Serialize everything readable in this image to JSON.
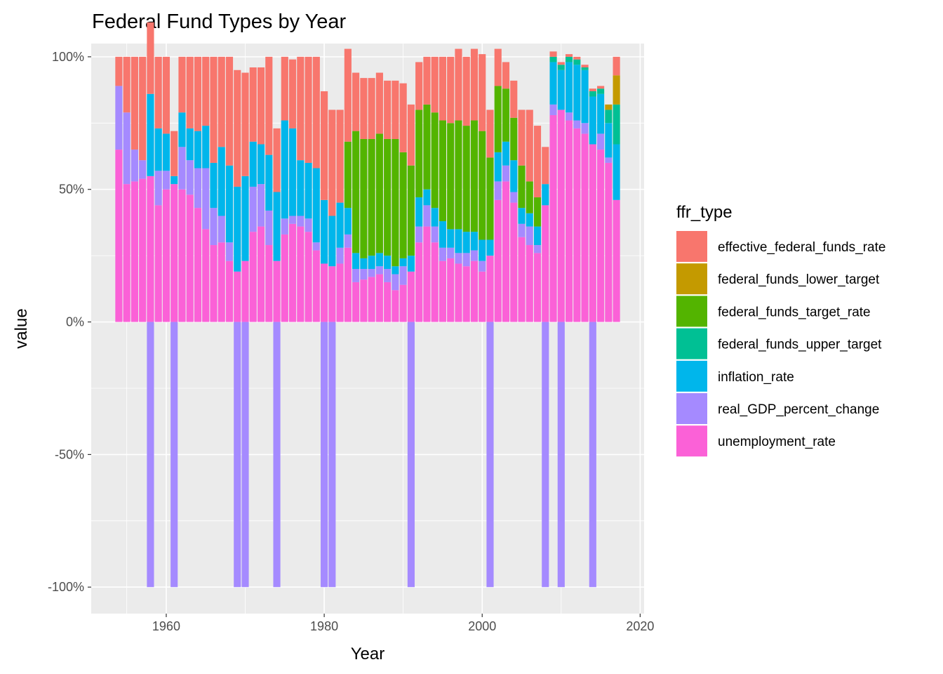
{
  "chart_data": {
    "type": "bar",
    "stacked": "fill",
    "title": "Federal Fund Types by Year",
    "xlabel": "Year",
    "ylabel": "value",
    "xlim": [
      1950.5,
      2020.5
    ],
    "ylim": [
      -1.1,
      1.05
    ],
    "x_ticks": [
      1960,
      1980,
      2000,
      2020
    ],
    "x_tick_labels": [
      "1960",
      "1980",
      "2000",
      "2020"
    ],
    "y_ticks": [
      -1,
      -0.5,
      0,
      0.5,
      1
    ],
    "y_tick_labels": [
      "-100%",
      "-50%",
      "0%",
      "50%",
      "100%"
    ],
    "grid": true,
    "legend_title": "ffr_type",
    "legend_position": "right",
    "series_order": [
      "effective_federal_funds_rate",
      "federal_funds_lower_target",
      "federal_funds_target_rate",
      "federal_funds_upper_target",
      "inflation_rate",
      "real_GDP_percent_change",
      "unemployment_rate"
    ],
    "colors": {
      "effective_federal_funds_rate": "#F8766D",
      "federal_funds_lower_target": "#C49A00",
      "federal_funds_target_rate": "#53B400",
      "federal_funds_upper_target": "#00C094",
      "inflation_rate": "#00B6EB",
      "real_GDP_percent_change": "#A58AFF",
      "unemployment_rate": "#FB61D7"
    },
    "years": [
      1954,
      1955,
      1956,
      1957,
      1958,
      1959,
      1960,
      1961,
      1962,
      1963,
      1964,
      1965,
      1966,
      1967,
      1968,
      1969,
      1970,
      1971,
      1972,
      1973,
      1974,
      1975,
      1976,
      1977,
      1978,
      1979,
      1980,
      1981,
      1982,
      1983,
      1984,
      1985,
      1986,
      1987,
      1988,
      1989,
      1990,
      1991,
      1992,
      1993,
      1994,
      1995,
      1996,
      1997,
      1998,
      1999,
      2000,
      2001,
      2002,
      2003,
      2004,
      2005,
      2006,
      2007,
      2008,
      2009,
      2010,
      2011,
      2012,
      2013,
      2014,
      2015,
      2016,
      2017
    ],
    "series": [
      {
        "name": "unemployment_rate",
        "values": [
          0.65,
          0.52,
          0.53,
          0.54,
          0.55,
          0.44,
          0.5,
          0.52,
          0.5,
          0.48,
          0.43,
          0.35,
          0.29,
          0.3,
          0.23,
          0.19,
          0.23,
          0.34,
          0.36,
          0.29,
          0.23,
          0.33,
          0.37,
          0.36,
          0.34,
          0.27,
          0.22,
          0.21,
          0.22,
          0.28,
          0.15,
          0.16,
          0.17,
          0.18,
          0.15,
          0.12,
          0.14,
          0.19,
          0.3,
          0.36,
          0.3,
          0.23,
          0.24,
          0.22,
          0.21,
          0.23,
          0.19,
          0.25,
          0.46,
          0.53,
          0.45,
          0.32,
          0.29,
          0.26,
          0.44,
          0.78,
          0.8,
          0.76,
          0.73,
          0.71,
          0.67,
          0.65,
          0.6,
          0.46
        ]
      },
      {
        "name": "real_GDP_percent_change",
        "values": [
          0.24,
          0.27,
          0.12,
          0.07,
          -1,
          0.13,
          0.07,
          -1,
          0.16,
          0.13,
          0.15,
          0.23,
          0.14,
          0.1,
          0.07,
          -1,
          -1,
          0.17,
          0.16,
          0.13,
          -1,
          0.06,
          0.03,
          0.04,
          0.05,
          0.03,
          -1,
          -1,
          0.06,
          0.05,
          0.05,
          0.04,
          0.03,
          0.03,
          0.05,
          0.06,
          0.07,
          -1,
          0.06,
          0.08,
          0.06,
          0.05,
          0.04,
          0.04,
          0.05,
          0.04,
          0.04,
          -1,
          0.07,
          0.06,
          0.04,
          0.05,
          0.07,
          0.03,
          -1,
          0.04,
          -1,
          0.03,
          0.03,
          0.04,
          -1,
          0.06,
          0.02,
          0.0
        ]
      },
      {
        "name": "inflation_rate",
        "values": [
          0.0,
          0.0,
          0.0,
          0.0,
          0.31,
          0.16,
          0.14,
          0.03,
          0.13,
          0.12,
          0.14,
          0.16,
          0.17,
          0.26,
          0.29,
          0.32,
          0.32,
          0.17,
          0.15,
          0.21,
          0.26,
          0.37,
          0.33,
          0.21,
          0.21,
          0.28,
          0.24,
          0.19,
          0.17,
          0.1,
          0.06,
          0.04,
          0.05,
          0.05,
          0.05,
          0.03,
          0.03,
          0.06,
          0.11,
          0.06,
          0.07,
          0.1,
          0.07,
          0.09,
          0.08,
          0.07,
          0.08,
          0.06,
          0.11,
          0.09,
          0.12,
          0.06,
          0.05,
          0.07,
          0.08,
          0.16,
          0.15,
          0.19,
          0.21,
          0.2,
          0.18,
          0.15,
          0.13,
          0.21
        ]
      },
      {
        "name": "federal_funds_target_rate",
        "values": [
          0,
          0,
          0,
          0,
          0,
          0,
          0,
          0,
          0,
          0,
          0,
          0,
          0,
          0,
          0,
          0,
          0,
          0,
          0,
          0,
          0,
          0,
          0,
          0,
          0,
          0,
          0,
          0,
          0,
          0.25,
          0.46,
          0.45,
          0.44,
          0.45,
          0.44,
          0.48,
          0.4,
          0.34,
          0.33,
          0.32,
          0.36,
          0.38,
          0.4,
          0.41,
          0.4,
          0.42,
          0.41,
          0.31,
          0.25,
          0.2,
          0.16,
          0.16,
          0.12,
          0.11,
          0.0,
          0,
          0,
          0,
          0,
          0,
          0,
          0,
          0,
          0
        ]
      },
      {
        "name": "federal_funds_upper_target",
        "values": [
          0,
          0,
          0,
          0,
          0,
          0,
          0,
          0,
          0,
          0,
          0,
          0,
          0,
          0,
          0,
          0,
          0,
          0,
          0,
          0,
          0,
          0,
          0,
          0,
          0,
          0,
          0,
          0,
          0,
          0,
          0,
          0,
          0,
          0,
          0,
          0,
          0,
          0,
          0,
          0,
          0,
          0,
          0,
          0,
          0,
          0,
          0,
          0,
          0,
          0,
          0,
          0,
          0,
          0,
          0,
          0.02,
          0.02,
          0.02,
          0.02,
          0.01,
          0.02,
          0.02,
          0.05,
          0.15
        ]
      },
      {
        "name": "federal_funds_lower_target",
        "values": [
          0,
          0,
          0,
          0,
          0,
          0,
          0,
          0,
          0,
          0,
          0,
          0,
          0,
          0,
          0,
          0,
          0,
          0,
          0,
          0,
          0,
          0,
          0,
          0,
          0,
          0,
          0,
          0,
          0,
          0,
          0,
          0,
          0,
          0,
          0,
          0,
          0,
          0,
          0,
          0,
          0,
          0,
          0,
          0,
          0,
          0,
          0,
          0,
          0,
          0,
          0,
          0,
          0,
          0,
          0,
          0,
          0,
          0,
          0,
          0,
          0,
          0,
          0.02,
          0.11
        ]
      },
      {
        "name": "effective_federal_funds_rate",
        "values": [
          0.11,
          0.21,
          0.35,
          0.39,
          0.27,
          0.27,
          0.29,
          0.17,
          0.21,
          0.27,
          0.28,
          0.26,
          0.4,
          0.34,
          0.41,
          0.44,
          0.39,
          0.28,
          0.29,
          0.37,
          0.24,
          0.24,
          0.26,
          0.39,
          0.4,
          0.42,
          0.41,
          0.4,
          0.35,
          0.35,
          0.22,
          0.23,
          0.23,
          0.23,
          0.22,
          0.22,
          0.26,
          0.23,
          0.18,
          0.18,
          0.21,
          0.24,
          0.25,
          0.27,
          0.26,
          0.27,
          0.29,
          0.18,
          0.14,
          0.1,
          0.14,
          0.21,
          0.27,
          0.27,
          0.14,
          0.02,
          0.01,
          0.01,
          0.01,
          0.01,
          0.01,
          0.01,
          0.0,
          0.07
        ]
      }
    ]
  }
}
